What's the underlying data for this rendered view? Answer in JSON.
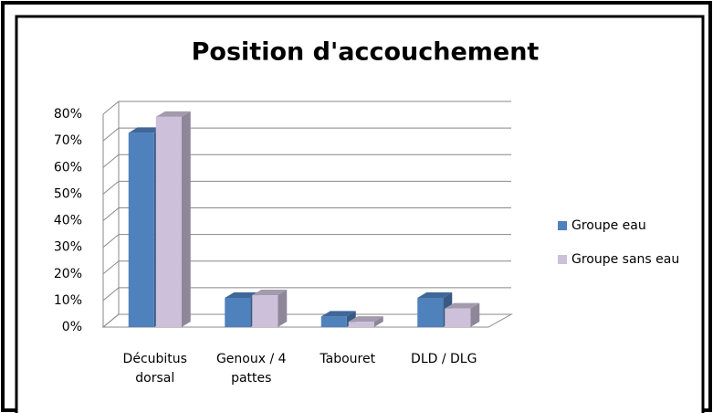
{
  "chart_data": {
    "type": "bar3d",
    "title": "Position d'accouchement",
    "categories": [
      "Décubitus dorsal",
      "Genoux / 4 pattes",
      "Tabouret",
      "DLD / DLG"
    ],
    "series": [
      {
        "name": "Groupe eau",
        "color": "#4f81bd",
        "values": [
          73,
          11,
          4,
          11
        ]
      },
      {
        "name": "Groupe sans eau",
        "color": "#ccc0da",
        "values": [
          79,
          12,
          2,
          7
        ]
      }
    ],
    "ylim": [
      0,
      80
    ],
    "yticks": [
      {
        "value": 0,
        "label": "0%"
      },
      {
        "value": 10,
        "label": "10%"
      },
      {
        "value": 20,
        "label": "20%"
      },
      {
        "value": 30,
        "label": "30%"
      },
      {
        "value": 40,
        "label": "40%"
      },
      {
        "value": 50,
        "label": "50%"
      },
      {
        "value": 60,
        "label": "60%"
      },
      {
        "value": 70,
        "label": "70%"
      },
      {
        "value": 80,
        "label": "80%"
      }
    ],
    "grid": true,
    "legend": "right"
  }
}
